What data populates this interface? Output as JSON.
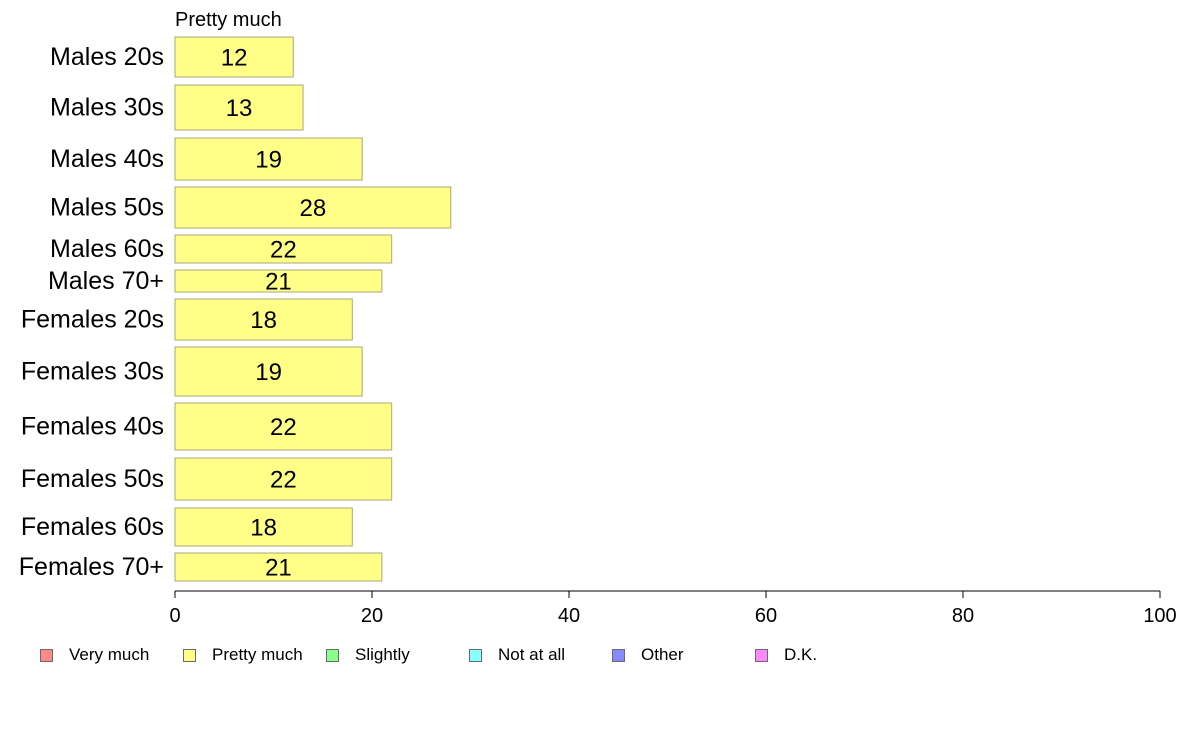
{
  "chart_data": {
    "type": "bar",
    "orientation": "horizontal",
    "title": "Pretty much",
    "categories": [
      "Males 20s",
      "Males 30s",
      "Males 40s",
      "Males 50s",
      "Males 60s",
      "Males 70+",
      "Females 20s",
      "Females 30s",
      "Females 40s",
      "Females 50s",
      "Females 60s",
      "Females 70+"
    ],
    "values": [
      12,
      13,
      19,
      28,
      22,
      21,
      18,
      19,
      22,
      22,
      18,
      21
    ],
    "labels": [
      "12",
      "13",
      "19",
      "28",
      "22",
      "21",
      "18",
      "19",
      "22",
      "22",
      "18",
      "21"
    ],
    "xlim": [
      0,
      100
    ],
    "xticks": [
      0,
      20,
      40,
      60,
      80,
      100
    ],
    "bar_color": "#ffff88",
    "bar_border": "#a8a878",
    "grid": false,
    "legend_position": "bottom",
    "legend": [
      {
        "label": "Very much",
        "color": "#ff8888"
      },
      {
        "label": "Pretty much",
        "color": "#ffff88"
      },
      {
        "label": "Slightly",
        "color": "#88ff88"
      },
      {
        "label": "Not at all",
        "color": "#88ffff"
      },
      {
        "label": "Other",
        "color": "#8888ff"
      },
      {
        "label": "D.K.",
        "color": "#ff88ff"
      }
    ]
  }
}
